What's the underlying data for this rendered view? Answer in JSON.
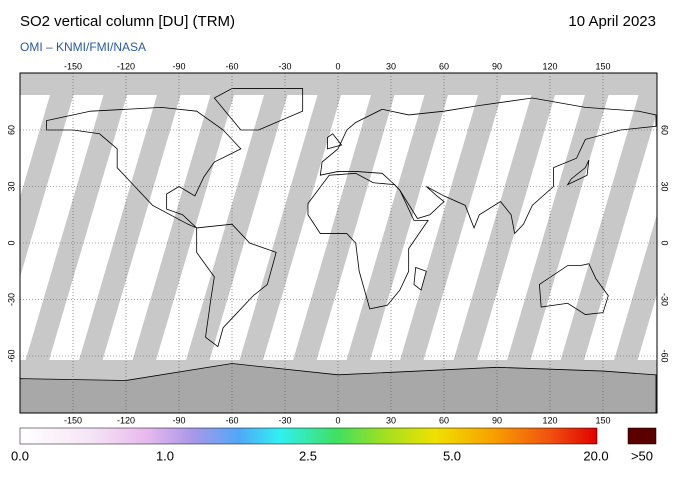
{
  "header": {
    "title": "SO2 vertical column [DU] (TRM)",
    "date": "10 April 2023",
    "source": "OMI – KNMI/FMI/NASA"
  },
  "map": {
    "lon_ticks": [
      -150,
      -120,
      -90,
      -60,
      -30,
      0,
      30,
      60,
      90,
      120,
      150
    ],
    "lat_ticks": [
      60,
      30,
      0,
      -30,
      -60
    ]
  },
  "colorbar": {
    "labels": [
      "0.0",
      "1.0",
      "2.5",
      "5.0",
      "20.0"
    ],
    "over_label": ">50"
  }
}
